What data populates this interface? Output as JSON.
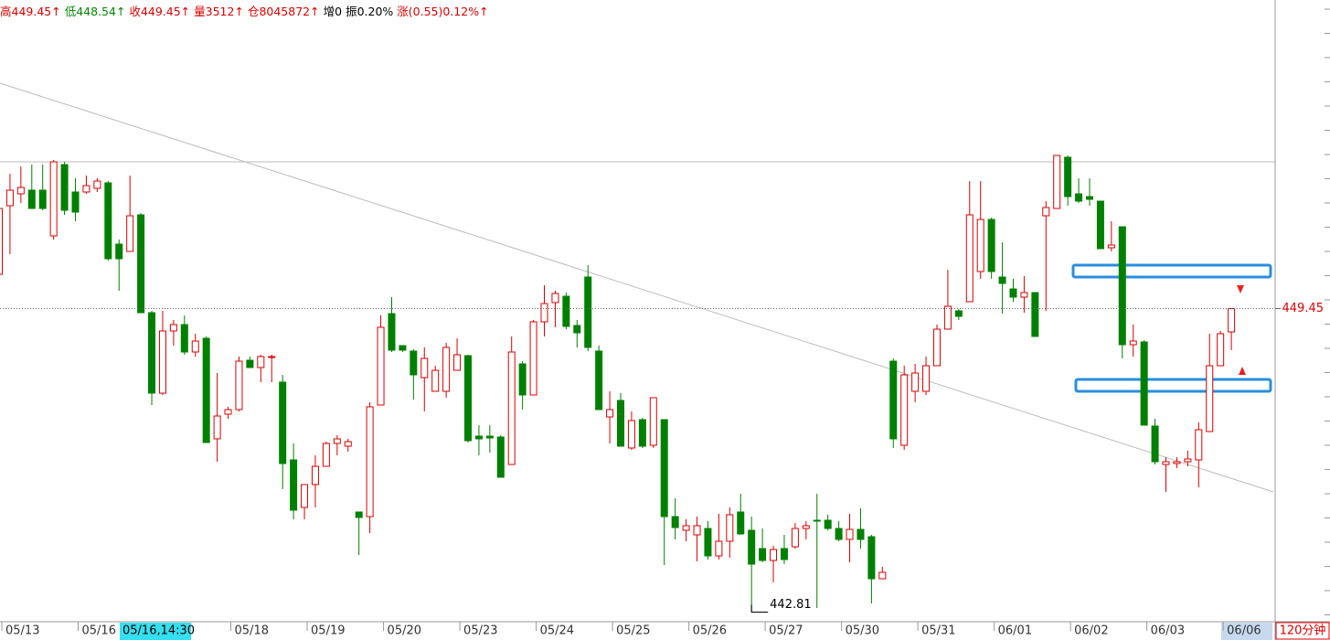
{
  "chart_data": {
    "type": "candlestick",
    "header": [
      {
        "text": "高449.45↑",
        "color": "#dd0000"
      },
      {
        "text": "低448.54↑",
        "color": "#008800"
      },
      {
        "text": "收449.45↑",
        "color": "#dd0000"
      },
      {
        "text": "量3512↑",
        "color": "#dd0000"
      },
      {
        "text": "仓8045872↑",
        "color": "#dd0000"
      },
      {
        "text": "增0",
        "color": "#000000"
      },
      {
        "text": "振0.20%",
        "color": "#000000"
      },
      {
        "text": "涨(0.55)0.12%↑",
        "color": "#dd0000"
      }
    ],
    "cursor_label": "05/16,14:30",
    "period": "120分钟",
    "up_color": "#dd0000",
    "down_color": "#008000",
    "ylim": [
      442.6,
      456.2
    ],
    "categories": [
      "05/13",
      null,
      null,
      null,
      null,
      null,
      null,
      "05/16",
      null,
      null,
      null,
      null,
      null,
      null,
      null,
      null,
      null,
      null,
      null,
      null,
      null,
      "05/18",
      null,
      null,
      null,
      null,
      null,
      null,
      "05/19",
      null,
      null,
      null,
      null,
      null,
      null,
      "05/20",
      null,
      null,
      null,
      null,
      null,
      null,
      "05/23",
      null,
      null,
      null,
      null,
      null,
      null,
      "05/24",
      null,
      null,
      null,
      null,
      null,
      null,
      "05/25",
      null,
      null,
      null,
      null,
      null,
      null,
      "05/26",
      null,
      null,
      null,
      null,
      null,
      null,
      "05/27",
      null,
      null,
      null,
      null,
      null,
      null,
      "05/30",
      null,
      null,
      null,
      null,
      null,
      null,
      "05/31",
      null,
      null,
      null,
      null,
      null,
      null,
      "06/01",
      null,
      null,
      null,
      null,
      null,
      null,
      "06/02",
      null,
      null,
      null,
      null,
      null,
      null,
      "06/03",
      null,
      null,
      null,
      null,
      null,
      null,
      "06/06",
      null
    ],
    "open": [
      450.2,
      451.7,
      451.96,
      452.04,
      452.04,
      451.04,
      452.6,
      452.0,
      452.0,
      452.08,
      452.2,
      450.86,
      450.7,
      451.5,
      449.36,
      447.6,
      448.96,
      449.1,
      448.5,
      448.8,
      446.6,
      447.14,
      447.24,
      448.32,
      448.16,
      448.4,
      447.84,
      446.14,
      445.1,
      445.6,
      446.0,
      446.5,
      446.44,
      445.0,
      444.9,
      447.34,
      449.34,
      448.64,
      448.52,
      447.94,
      447.64,
      447.64,
      448.1,
      448.42,
      446.66,
      446.66,
      446.64,
      446.04,
      448.24,
      447.56,
      449.16,
      449.58,
      449.72,
      449.08,
      450.14,
      448.52,
      447.08,
      447.44,
      446.4,
      447.02,
      446.46,
      447.02,
      444.9,
      444.6,
      444.5,
      444.64,
      444.04,
      444.36,
      445.0,
      444.6,
      444.2,
      443.94,
      444.2,
      444.24,
      444.64,
      444.82,
      444.82,
      444.64,
      444.4,
      444.62,
      444.46,
      443.54,
      448.3,
      446.46,
      447.64,
      447.64,
      448.2,
      449.0,
      449.4,
      449.6,
      450.26,
      451.4,
      450.14,
      449.88,
      449.7,
      449.8,
      451.48,
      451.64,
      452.76,
      451.96,
      451.9,
      451.8,
      450.78,
      451.24,
      448.66,
      448.72,
      446.88,
      446.04,
      446.06,
      446.1,
      446.14,
      446.76,
      448.2,
      448.94
    ],
    "high": [
      451.9,
      452.4,
      452.56,
      452.6,
      452.6,
      452.7,
      452.66,
      452.3,
      452.36,
      452.3,
      452.24,
      450.96,
      452.36,
      451.54,
      449.4,
      449.4,
      449.2,
      449.3,
      448.9,
      448.84,
      448.04,
      447.3,
      448.4,
      448.4,
      448.44,
      448.44,
      448.0,
      446.5,
      445.6,
      446.24,
      446.54,
      446.68,
      446.6,
      445.0,
      447.4,
      449.3,
      449.7,
      448.64,
      448.56,
      448.6,
      448.2,
      448.7,
      448.8,
      448.44,
      446.9,
      446.9,
      446.68,
      448.84,
      448.3,
      449.2,
      449.96,
      449.84,
      449.8,
      449.2,
      450.4,
      448.64,
      447.64,
      447.6,
      447.2,
      447.06,
      447.5,
      447.02,
      445.3,
      444.84,
      444.9,
      444.8,
      444.96,
      445.1,
      445.4,
      444.9,
      444.64,
      444.26,
      444.5,
      444.76,
      444.8,
      445.4,
      444.94,
      444.8,
      444.96,
      445.08,
      444.5,
      443.8,
      448.36,
      448.2,
      448.24,
      448.4,
      449.1,
      450.3,
      449.44,
      452.24,
      452.24,
      451.44,
      450.9,
      450.1,
      450.16,
      449.8,
      451.8,
      452.8,
      452.8,
      452.3,
      452.3,
      451.8,
      451.36,
      451.24,
      449.1,
      448.76,
      447.04,
      446.2,
      446.2,
      446.34,
      446.96,
      448.9,
      448.96,
      449.45
    ],
    "low": [
      450.2,
      450.64,
      451.76,
      451.64,
      451.6,
      450.96,
      451.5,
      451.36,
      451.96,
      452.0,
      450.5,
      449.84,
      450.7,
      449.36,
      447.34,
      447.56,
      448.64,
      448.44,
      448.4,
      446.52,
      446.1,
      447.04,
      447.2,
      448.16,
      447.84,
      447.84,
      445.5,
      444.84,
      444.84,
      445.1,
      446.0,
      446.24,
      446.32,
      444.06,
      444.54,
      447.34,
      448.5,
      448.5,
      447.46,
      447.2,
      447.64,
      447.5,
      448.1,
      446.52,
      446.24,
      446.3,
      445.76,
      446.04,
      447.24,
      447.56,
      448.84,
      449.04,
      449.0,
      448.6,
      448.52,
      447.24,
      446.5,
      446.44,
      446.36,
      446.4,
      446.4,
      443.84,
      444.4,
      444.36,
      443.92,
      443.96,
      443.96,
      444.0,
      444.5,
      442.81,
      443.9,
      443.46,
      443.86,
      444.2,
      444.4,
      442.9,
      444.6,
      444.36,
      443.9,
      444.2,
      443.0,
      443.54,
      446.4,
      446.36,
      447.4,
      447.56,
      448.2,
      449.0,
      449.2,
      449.6,
      450.1,
      450.1,
      449.34,
      449.6,
      449.36,
      448.84,
      449.4,
      451.64,
      451.7,
      451.76,
      451.7,
      450.76,
      450.7,
      448.36,
      448.4,
      446.9,
      446.04,
      445.44,
      445.96,
      446.0,
      445.54,
      446.76,
      448.2,
      448.54
    ],
    "close": [
      451.64,
      452.04,
      452.1,
      451.64,
      451.64,
      452.66,
      451.6,
      451.56,
      452.14,
      452.24,
      450.54,
      450.54,
      451.48,
      449.36,
      447.6,
      448.96,
      449.1,
      448.5,
      448.74,
      446.52,
      447.1,
      447.24,
      448.3,
      448.16,
      448.4,
      448.4,
      446.06,
      445.04,
      445.6,
      446.0,
      446.5,
      446.6,
      446.54,
      444.88,
      447.3,
      449.04,
      448.54,
      448.54,
      448.0,
      448.36,
      448.1,
      448.6,
      448.44,
      446.56,
      446.6,
      446.62,
      445.76,
      448.5,
      447.56,
      449.16,
      449.56,
      449.78,
      449.06,
      448.92,
      448.6,
      447.24,
      447.24,
      446.44,
      447.0,
      446.44,
      447.5,
      444.9,
      444.66,
      444.7,
      444.7,
      444.04,
      444.36,
      444.94,
      444.52,
      443.86,
      443.94,
      444.18,
      443.96,
      444.64,
      444.7,
      444.8,
      444.64,
      444.4,
      444.62,
      444.4,
      443.54,
      443.68,
      446.6,
      448.0,
      448.04,
      448.2,
      449.0,
      449.5,
      449.28,
      451.5,
      451.4,
      450.26,
      450.0,
      449.7,
      449.8,
      448.84,
      451.66,
      452.8,
      451.9,
      451.8,
      451.84,
      450.76,
      450.84,
      448.66,
      448.74,
      446.9,
      446.1,
      446.1,
      446.1,
      446.16,
      446.8,
      448.2,
      448.9,
      449.45
    ]
  }
}
